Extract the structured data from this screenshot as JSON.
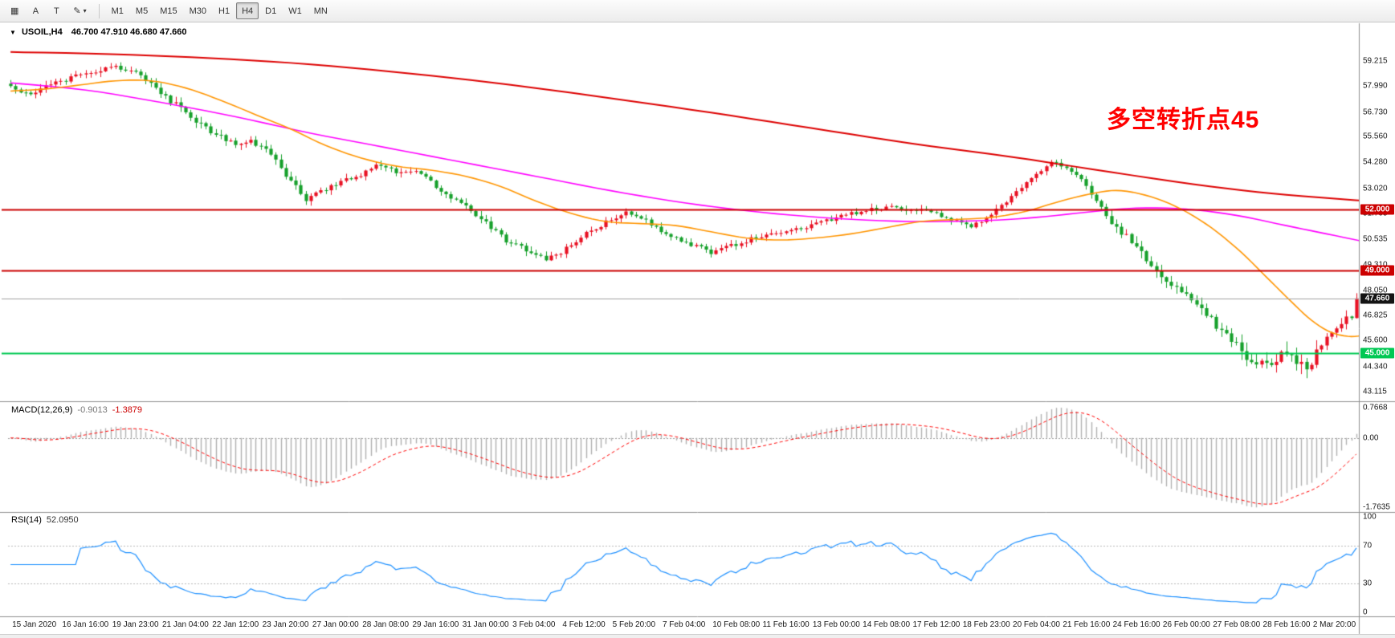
{
  "toolbar": {
    "tools": [
      {
        "id": "grid-tool",
        "glyph": "▦"
      },
      {
        "id": "annotation-tool",
        "glyph": "A"
      },
      {
        "id": "text-tool",
        "glyph": "T"
      },
      {
        "id": "brush-tool",
        "glyph": "✎",
        "caret": "▾"
      }
    ],
    "timeframes": [
      "M1",
      "M5",
      "M15",
      "M30",
      "H1",
      "H4",
      "D1",
      "W1",
      "MN"
    ],
    "active_timeframe": "H4"
  },
  "chart_title": {
    "collapse_icon": "▼",
    "symbol_period": "USOIL,H4",
    "ohlc": "46.700 47.910 46.680 47.660"
  },
  "price_axis": {
    "labels": [
      "59.215",
      "57.990",
      "56.730",
      "55.560",
      "54.280",
      "53.020",
      "51.795",
      "50.535",
      "49.310",
      "48.050",
      "46.825",
      "45.600",
      "44.340",
      "43.115"
    ]
  },
  "time_axis": {
    "labels": [
      "15 Jan 2020",
      "16 Jan 16:00",
      "19 Jan 23:00",
      "21 Jan 04:00",
      "22 Jan 12:00",
      "23 Jan 20:00",
      "27 Jan 00:00",
      "28 Jan 08:00",
      "29 Jan 16:00",
      "31 Jan 00:00",
      "3 Feb 04:00",
      "4 Feb 12:00",
      "5 Feb 20:00",
      "7 Feb 04:00",
      "10 Feb 08:00",
      "11 Feb 16:00",
      "13 Feb 00:00",
      "14 Feb 08:00",
      "17 Feb 12:00",
      "18 Feb 23:00",
      "20 Feb 04:00",
      "21 Feb 16:00",
      "24 Feb 16:00",
      "26 Feb 00:00",
      "27 Feb 08:00",
      "28 Feb 16:00",
      "2 Mar 20:00"
    ]
  },
  "chart_data": {
    "type": "candlestick",
    "symbol": "USOIL",
    "period": "H4",
    "bar_count": 270,
    "bars_per_tick": 10,
    "bull_color": "#e81123",
    "bear_color": "#16a02b",
    "last_bar": {
      "open": 46.7,
      "high": 47.91,
      "low": 46.68,
      "close": 47.66
    },
    "visible_price_range": {
      "min": 43.115,
      "max": 59.215
    },
    "close_anchors": [
      [
        0,
        57.9
      ],
      [
        0.4,
        57.5
      ],
      [
        0.8,
        58.1
      ],
      [
        1.2,
        58.4
      ],
      [
        1.6,
        58.7
      ],
      [
        2.0,
        58.9
      ],
      [
        2.4,
        58.8
      ],
      [
        2.8,
        58.2
      ],
      [
        3.2,
        57.3
      ],
      [
        3.6,
        56.5
      ],
      [
        4.0,
        55.8
      ],
      [
        4.4,
        55.2
      ],
      [
        4.8,
        55.4
      ],
      [
        5.2,
        54.6
      ],
      [
        5.6,
        53.3
      ],
      [
        5.9,
        52.5
      ],
      [
        6.2,
        52.9
      ],
      [
        6.6,
        53.3
      ],
      [
        7.0,
        53.7
      ],
      [
        7.3,
        54.1
      ],
      [
        7.7,
        53.8
      ],
      [
        8.1,
        53.9
      ],
      [
        8.5,
        53.1
      ],
      [
        9.0,
        52.3
      ],
      [
        9.5,
        51.3
      ],
      [
        10.0,
        50.3
      ],
      [
        10.4,
        49.9
      ],
      [
        10.7,
        49.6
      ],
      [
        11.0,
        49.9
      ],
      [
        11.5,
        50.8
      ],
      [
        12.0,
        51.5
      ],
      [
        12.3,
        51.9
      ],
      [
        12.7,
        51.4
      ],
      [
        13.1,
        50.8
      ],
      [
        13.5,
        50.4
      ],
      [
        14.0,
        49.9
      ],
      [
        14.5,
        50.3
      ],
      [
        15.0,
        50.7
      ],
      [
        15.5,
        50.9
      ],
      [
        16.0,
        51.2
      ],
      [
        16.5,
        51.6
      ],
      [
        17.0,
        51.9
      ],
      [
        17.5,
        52.1
      ],
      [
        18.0,
        52.0
      ],
      [
        18.5,
        51.8
      ],
      [
        19.2,
        51.1
      ],
      [
        19.6,
        51.8
      ],
      [
        20.0,
        52.6
      ],
      [
        20.4,
        53.5
      ],
      [
        20.8,
        54.3
      ],
      [
        21.1,
        54.0
      ],
      [
        21.4,
        53.4
      ],
      [
        22.0,
        51.4
      ],
      [
        22.5,
        50.2
      ],
      [
        23.0,
        48.8
      ],
      [
        23.5,
        47.7
      ],
      [
        24.0,
        46.6
      ],
      [
        24.4,
        45.6
      ],
      [
        24.7,
        44.9
      ],
      [
        25.0,
        44.4
      ],
      [
        25.3,
        44.7
      ],
      [
        25.5,
        45.2
      ],
      [
        25.7,
        44.6
      ],
      [
        25.9,
        44.3
      ],
      [
        26.1,
        45.0
      ],
      [
        26.3,
        45.7
      ],
      [
        26.5,
        46.1
      ],
      [
        26.7,
        46.7
      ],
      [
        26.9,
        47.66
      ]
    ],
    "volatility_zones": [
      [
        0,
        3,
        0.22
      ],
      [
        3,
        6,
        0.3
      ],
      [
        6,
        9,
        0.22
      ],
      [
        9,
        11,
        0.26
      ],
      [
        11,
        22,
        0.2
      ],
      [
        22,
        24.5,
        0.36
      ],
      [
        24.5,
        26.3,
        0.52
      ],
      [
        26.3,
        27.2,
        0.3
      ]
    ],
    "levels": [
      {
        "price": 52.0,
        "label": "52.000",
        "color": "#cc0000",
        "width": 2
      },
      {
        "price": 49.0,
        "label": "49.000",
        "color": "#cc0000",
        "width": 2
      },
      {
        "price": 45.0,
        "label": "45.000",
        "color": "#00c853",
        "width": 2
      }
    ],
    "current_price": {
      "value": 47.66,
      "label": "47.660",
      "line_color": "#a0a0a0",
      "tag_bg": "#141414"
    },
    "annotation": {
      "text": "多空转折点45",
      "color": "#ff0000"
    },
    "moving_averages": [
      {
        "name": "ma-slow",
        "color": "#dd0000",
        "width": 2,
        "anchors": [
          [
            0,
            59.65
          ],
          [
            2,
            59.55
          ],
          [
            4,
            59.35
          ],
          [
            6,
            59.05
          ],
          [
            8,
            58.6
          ],
          [
            10,
            58.05
          ],
          [
            12,
            57.4
          ],
          [
            14,
            56.7
          ],
          [
            16,
            55.95
          ],
          [
            18,
            55.2
          ],
          [
            20,
            54.55
          ],
          [
            22,
            53.8
          ],
          [
            24,
            53.1
          ],
          [
            25.5,
            52.7
          ],
          [
            27.1,
            52.4
          ]
        ]
      },
      {
        "name": "ma-medium",
        "color": "#ff00ff",
        "width": 1.6,
        "anchors": [
          [
            0,
            58.15
          ],
          [
            1.5,
            57.8
          ],
          [
            3,
            57.2
          ],
          [
            4.5,
            56.5
          ],
          [
            6,
            55.7
          ],
          [
            7.5,
            55.0
          ],
          [
            9,
            54.3
          ],
          [
            10.5,
            53.6
          ],
          [
            12,
            52.9
          ],
          [
            13.5,
            52.3
          ],
          [
            15,
            51.85
          ],
          [
            16.5,
            51.55
          ],
          [
            18,
            51.4
          ],
          [
            19.5,
            51.45
          ],
          [
            20.5,
            51.6
          ],
          [
            21.5,
            51.85
          ],
          [
            22.5,
            52.05
          ],
          [
            23.5,
            52.0
          ],
          [
            24.5,
            51.7
          ],
          [
            25.5,
            51.2
          ],
          [
            26.3,
            50.8
          ],
          [
            27.1,
            50.4
          ]
        ]
      },
      {
        "name": "ma-fast",
        "color": "#ff9500",
        "width": 1.6,
        "anchors": [
          [
            0,
            57.75
          ],
          [
            0.7,
            57.85
          ],
          [
            1.4,
            58.05
          ],
          [
            2.1,
            58.25
          ],
          [
            2.8,
            58.25
          ],
          [
            3.5,
            57.9
          ],
          [
            4.2,
            57.3
          ],
          [
            4.9,
            56.6
          ],
          [
            5.6,
            55.9
          ],
          [
            6.3,
            55.1
          ],
          [
            7,
            54.5
          ],
          [
            7.7,
            54.1
          ],
          [
            8.4,
            53.9
          ],
          [
            9.1,
            53.6
          ],
          [
            9.8,
            53.1
          ],
          [
            10.5,
            52.4
          ],
          [
            11.2,
            51.8
          ],
          [
            11.9,
            51.4
          ],
          [
            12.6,
            51.3
          ],
          [
            13.3,
            51.2
          ],
          [
            14,
            50.9
          ],
          [
            14.7,
            50.6
          ],
          [
            15.4,
            50.5
          ],
          [
            16.1,
            50.6
          ],
          [
            16.8,
            50.8
          ],
          [
            17.5,
            51.1
          ],
          [
            18.2,
            51.4
          ],
          [
            18.9,
            51.5
          ],
          [
            19.6,
            51.6
          ],
          [
            20.3,
            51.9
          ],
          [
            21,
            52.4
          ],
          [
            21.7,
            52.8
          ],
          [
            22.2,
            52.9
          ],
          [
            22.8,
            52.6
          ],
          [
            23.4,
            52.0
          ],
          [
            24,
            51.1
          ],
          [
            24.6,
            49.9
          ],
          [
            25.1,
            48.7
          ],
          [
            25.6,
            47.5
          ],
          [
            26,
            46.6
          ],
          [
            26.4,
            46.0
          ],
          [
            26.8,
            45.8
          ],
          [
            27.1,
            45.9
          ]
        ]
      }
    ]
  },
  "macd": {
    "label": "MACD(12,26,9)",
    "main_value": "-0.9013",
    "signal_value": "-1.3879",
    "periods": [
      12,
      26,
      9
    ],
    "axis_labels": [
      "0.7668",
      "0.00",
      "-1.7635"
    ],
    "histogram_color": "#b0b0b0",
    "signal_color": "#ff0000"
  },
  "rsi": {
    "label": "RSI(14)",
    "value": "52.0950",
    "period": 14,
    "axis_labels": [
      "100",
      "70",
      "30",
      "0"
    ],
    "level_lines": [
      70,
      30
    ],
    "color": "#1e90ff"
  }
}
